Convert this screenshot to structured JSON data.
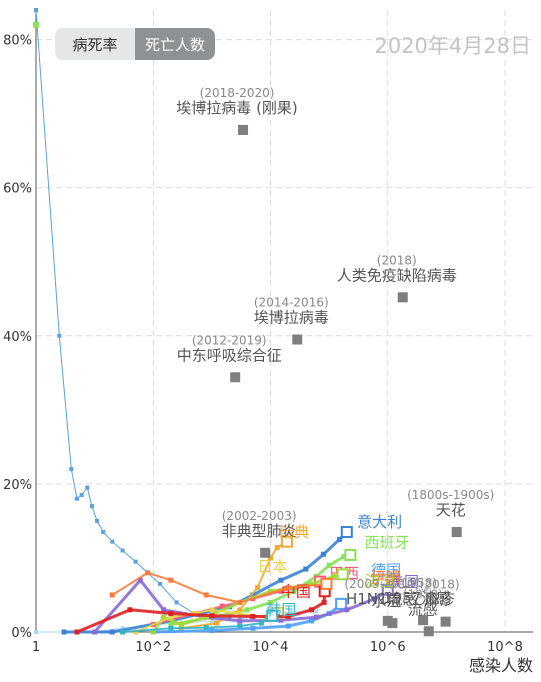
{
  "header": {
    "toggle_cfr": "病死率",
    "toggle_deaths": "死亡人数",
    "date": "2020年4月28日"
  },
  "chart_data": {
    "type": "scatter",
    "xlabel": "感染人数",
    "ylabel": "",
    "x_scale": "log",
    "xlim": [
      1,
      300000000
    ],
    "ylim": [
      0,
      84
    ],
    "x_ticks": [
      {
        "v": 1,
        "label": "1"
      },
      {
        "v": 100,
        "label": "10^2"
      },
      {
        "v": 10000,
        "label": "10^4"
      },
      {
        "v": 1000000,
        "label": "10^6"
      },
      {
        "v": 100000000,
        "label": "10^8"
      }
    ],
    "y_ticks": [
      {
        "v": 0,
        "label": "0%"
      },
      {
        "v": 20,
        "label": "20%"
      },
      {
        "v": 40,
        "label": "40%"
      },
      {
        "v": 60,
        "label": "60%"
      },
      {
        "v": 80,
        "label": "80%"
      }
    ],
    "grid": true,
    "diseases": [
      {
        "name": "埃博拉病毒 (刚果)",
        "period": "(2018-2020)",
        "x": 3400,
        "y": 67.8
      },
      {
        "name": "人类免疫缺陷病毒",
        "period": "(2018)",
        "x": 1800000,
        "y": 45.2
      },
      {
        "name": "埃博拉病毒",
        "period": "(2014-2016)",
        "x": 28600,
        "y": 39.5
      },
      {
        "name": "中东呼吸综合征",
        "period": "(2012-2019)",
        "x": 2500,
        "y": 34.4
      },
      {
        "name": "天花",
        "period": "(1800s-1900s)",
        "x": 15000000,
        "y": 13.5
      },
      {
        "name": "非典型肺炎",
        "period": "(2002-2003)",
        "x": 8100,
        "y": 10.7
      },
      {
        "name": "1957流感",
        "period": "(1958)",
        "x": 4000000,
        "y": 1.6
      },
      {
        "name": "H1N1流感",
        "period": "(2009-2010)",
        "x": 1000000,
        "y": 1.5
      },
      {
        "name": "麻疹",
        "period": "(2018)",
        "x": 9700000,
        "y": 1.4
      },
      {
        "name": "水痘",
        "period": "",
        "x": 1200000,
        "y": 1.2
      },
      {
        "name": "流感",
        "period": "(1950)",
        "x": 5000000,
        "y": 0.1
      }
    ],
    "countries": [
      {
        "name": "意大利",
        "color": "#3b82d6",
        "label_x": 300000,
        "label_y": 14.2,
        "lw": 3,
        "points": [
          [
            3,
            0
          ],
          [
            20,
            0
          ],
          [
            200,
            1.5
          ],
          [
            650,
            2.5
          ],
          [
            2000,
            3.4
          ],
          [
            5000,
            5.0
          ],
          [
            15000,
            7.0
          ],
          [
            40000,
            8.5
          ],
          [
            80000,
            10.5
          ],
          [
            150000,
            12.5
          ],
          [
            200000,
            13.5
          ]
        ]
      },
      {
        "name": "西班牙",
        "color": "#88e35a",
        "label_x": 400000,
        "label_y": 11.4,
        "lw": 3,
        "points": [
          [
            200,
            1.0
          ],
          [
            1000,
            2.0
          ],
          [
            4000,
            3.0
          ],
          [
            10000,
            4.0
          ],
          [
            25000,
            5.5
          ],
          [
            60000,
            7.5
          ],
          [
            100000,
            9.0
          ],
          [
            180000,
            10.2
          ],
          [
            230000,
            10.4
          ]
        ]
      },
      {
        "name": "瑞典",
        "color": "#f3a830",
        "label_x": 14000,
        "label_y": 12.8,
        "lw": 2,
        "points": [
          [
            300,
            0.5
          ],
          [
            1200,
            1.2
          ],
          [
            3000,
            3.0
          ],
          [
            6000,
            6.0
          ],
          [
            10000,
            10.0
          ],
          [
            13000,
            11.4
          ],
          [
            19000,
            12.2
          ]
        ]
      },
      {
        "name": "德国",
        "color": "#4fa0ff",
        "label_x": 520000,
        "label_y": 7.6,
        "lw": 3,
        "points": [
          [
            100,
            0
          ],
          [
            1000,
            0.2
          ],
          [
            5000,
            0.5
          ],
          [
            20000,
            0.8
          ],
          [
            50000,
            1.5
          ],
          [
            100000,
            2.5
          ],
          [
            150000,
            3.5
          ],
          [
            160000,
            3.8
          ]
        ]
      },
      {
        "name": "巴西",
        "color": "#ff5a7a",
        "label_x": 100000,
        "label_y": 7.2,
        "lw": 2,
        "points": [
          [
            100,
            1.0
          ],
          [
            500,
            2.5
          ],
          [
            1500,
            3.5
          ],
          [
            5000,
            4.5
          ],
          [
            15000,
            5.5
          ],
          [
            40000,
            6.2
          ],
          [
            70000,
            6.8
          ]
        ]
      },
      {
        "name": "美国",
        "color": "#8a6ad6",
        "label_x": 1050000,
        "label_y": 6.1,
        "lw": 3,
        "points": [
          [
            10,
            0
          ],
          [
            60,
            7
          ],
          [
            150,
            3
          ],
          [
            800,
            2
          ],
          [
            3000,
            1.5
          ],
          [
            15000,
            1.6
          ],
          [
            60000,
            2
          ],
          [
            200000,
            3
          ],
          [
            600000,
            4.5
          ],
          [
            1000000,
            5.7
          ]
        ]
      },
      {
        "name": "法国",
        "color": "#a3d83a",
        "label_x": 400000,
        "label_y": 6.2,
        "lw": 3,
        "points": [
          [
            100,
            0
          ],
          [
            150,
            2
          ],
          [
            300,
            1
          ],
          [
            800,
            2
          ],
          [
            3000,
            4
          ],
          [
            10000,
            5.5
          ],
          [
            50000,
            6.5
          ],
          [
            120000,
            7.5
          ],
          [
            170000,
            7.8
          ]
        ]
      },
      {
        "name": "日本",
        "color": "#e8d44c",
        "label_x": 6000,
        "label_y": 8.2,
        "lw": 2,
        "points": [
          [
            50,
            0
          ],
          [
            200,
            2
          ],
          [
            500,
            2.5
          ],
          [
            1000,
            3
          ],
          [
            3000,
            2.5
          ],
          [
            8000,
            2.0
          ],
          [
            13500,
            2.6
          ]
        ]
      },
      {
        "name": "中国",
        "color": "#e02020",
        "label_x": 15000,
        "label_y": 4.8,
        "lw": 3,
        "points": [
          [
            5,
            0
          ],
          [
            40,
            3
          ],
          [
            200,
            2.5
          ],
          [
            1000,
            2.2
          ],
          [
            5000,
            2.1
          ],
          [
            20000,
            2.1
          ],
          [
            50000,
            3.0
          ],
          [
            82000,
            4.0
          ],
          [
            84000,
            5.5
          ]
        ]
      },
      {
        "name": "韩国",
        "color": "#35b4c4",
        "label_x": 8500,
        "label_y": 2.3,
        "lw": 2,
        "points": [
          [
            30,
            0
          ],
          [
            200,
            0.5
          ],
          [
            800,
            0.6
          ],
          [
            3000,
            0.8
          ],
          [
            7000,
            1.2
          ],
          [
            9000,
            1.8
          ],
          [
            10700,
            2.2
          ]
        ]
      },
      {
        "name": "伊朗",
        "color": "#ff7a38",
        "label_x": 500000,
        "label_y": 6.7,
        "lw": 2,
        "points": [
          [
            20,
            5
          ],
          [
            80,
            8
          ],
          [
            200,
            7
          ],
          [
            800,
            5
          ],
          [
            3000,
            4
          ],
          [
            20000,
            6
          ],
          [
            90000,
            6.5
          ]
        ]
      }
    ],
    "extra_series": [
      {
        "color": "#5aa2e0",
        "lw": 1,
        "points": [
          [
            1,
            84
          ],
          [
            2.5,
            40
          ],
          [
            4,
            22
          ],
          [
            5,
            18
          ],
          [
            6,
            18.5
          ],
          [
            7.5,
            19.5
          ],
          [
            9,
            17
          ],
          [
            11,
            15
          ],
          [
            14,
            13.5
          ],
          [
            20,
            12.2
          ],
          [
            30,
            11
          ],
          [
            50,
            9.5
          ],
          [
            80,
            8
          ],
          [
            130,
            6.5
          ],
          [
            250,
            4
          ],
          [
            500,
            2.5
          ],
          [
            1000,
            2
          ],
          [
            2000,
            1.8
          ]
        ]
      },
      {
        "color": "#a8d8ff",
        "lw": 1,
        "points": [
          [
            1,
            0
          ],
          [
            3,
            0
          ],
          [
            10,
            0
          ],
          [
            30,
            0.5
          ],
          [
            100,
            1.0
          ],
          [
            300,
            1.2
          ],
          [
            1000,
            1.5
          ],
          [
            3000,
            1.8
          ],
          [
            10000,
            2.2
          ],
          [
            30000,
            2.5
          ],
          [
            60000,
            2.8
          ]
        ]
      }
    ],
    "baseline_point": {
      "x": 1,
      "y": 0
    }
  }
}
